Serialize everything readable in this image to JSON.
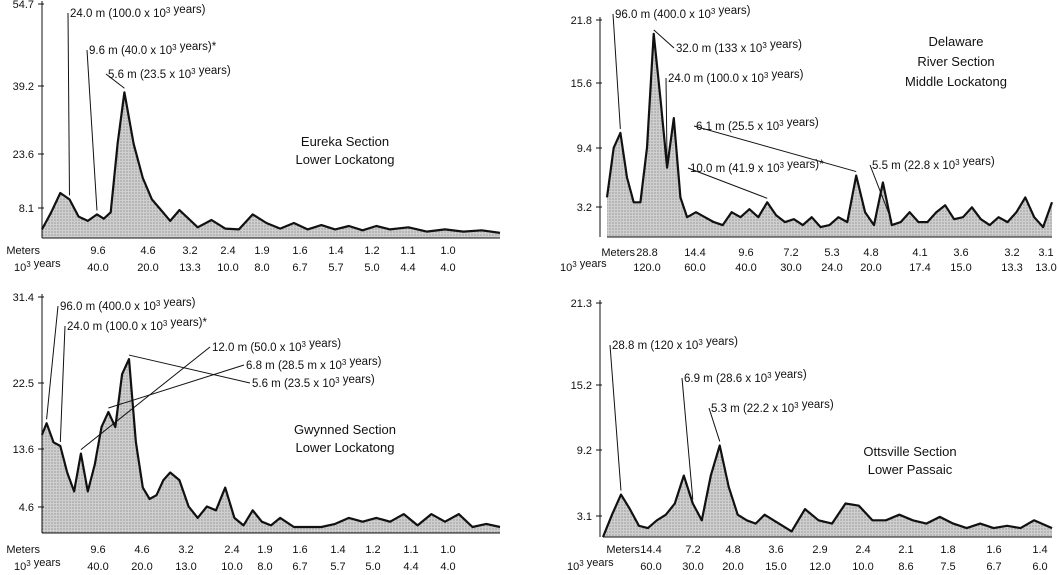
{
  "chart_data": [
    {
      "type": "area",
      "panel": "top-left",
      "title": [
        "Eureka Section",
        "Lower Lockatong"
      ],
      "y_ticks": [
        "54.7",
        "39.2",
        "23.6",
        "8.1"
      ],
      "ylim": [
        0,
        56
      ],
      "x_rows": [
        {
          "label": "Meters",
          "ticks": [
            "9.6",
            "4.6",
            "3.2",
            "2.4",
            "1.9",
            "1.6",
            "1.4",
            "1.2",
            "1.1",
            "1.0"
          ]
        },
        {
          "label": "10^3 years",
          "ticks": [
            "40.0",
            "20.0",
            "13.3",
            "10.0",
            "8.0",
            "6.7",
            "5.7",
            "5.0",
            "4.4",
            "4.0"
          ]
        }
      ],
      "x": [
        0,
        0.02,
        0.04,
        0.06,
        0.08,
        0.1,
        0.12,
        0.135,
        0.15,
        0.165,
        0.18,
        0.2,
        0.22,
        0.24,
        0.26,
        0.28,
        0.3,
        0.32,
        0.34,
        0.37,
        0.4,
        0.43,
        0.46,
        0.49,
        0.52,
        0.55,
        0.58,
        0.61,
        0.64,
        0.67,
        0.7,
        0.73,
        0.76,
        0.8,
        0.84,
        0.88,
        0.92,
        0.96,
        1.0
      ],
      "y": [
        2,
        6,
        10.5,
        9,
        5,
        4,
        5.5,
        4.5,
        6,
        22,
        34,
        22,
        14,
        9,
        6.5,
        4,
        6.5,
        4.5,
        2.5,
        4.2,
        2.2,
        2,
        5.5,
        3.5,
        2.2,
        3.5,
        2,
        3,
        2,
        2.8,
        1.8,
        2.8,
        2,
        2.5,
        1.5,
        2,
        1.5,
        1.8,
        1.2
      ],
      "annotations": [
        {
          "text": "24.0 m (100.0 x 10^3 years)",
          "peak": 0.06
        },
        {
          "text": "9.6 m (40.0 x 10^3 years)*",
          "peak": 0.12
        },
        {
          "text": "5.6 m (23.5 x 10^3 years)",
          "peak": 0.18
        }
      ]
    },
    {
      "type": "area",
      "panel": "top-right",
      "title": [
        "Delaware",
        "River Section",
        "Middle Lockatong"
      ],
      "y_ticks": [
        "21.8",
        "15.6",
        "9.4",
        "3.2"
      ],
      "ylim": [
        0,
        22.5
      ],
      "x_rows": [
        {
          "label": "Meters",
          "ticks": [
            "28.8",
            "14.4",
            "9.6",
            "7.2",
            "5.3",
            "4.8",
            "4.1",
            "3.6",
            "3.2",
            "3.1"
          ]
        },
        {
          "label": "10^3 years",
          "ticks": [
            "120.0",
            "60.0",
            "40.0",
            "30.0",
            "24.0",
            "20.0",
            "17.4",
            "15.0",
            "13.3",
            "13.0"
          ]
        }
      ],
      "x": [
        0,
        0.015,
        0.03,
        0.045,
        0.06,
        0.075,
        0.09,
        0.105,
        0.12,
        0.135,
        0.15,
        0.165,
        0.18,
        0.2,
        0.22,
        0.24,
        0.26,
        0.28,
        0.3,
        0.32,
        0.34,
        0.36,
        0.38,
        0.4,
        0.42,
        0.44,
        0.46,
        0.48,
        0.5,
        0.52,
        0.54,
        0.56,
        0.58,
        0.6,
        0.62,
        0.64,
        0.66,
        0.68,
        0.7,
        0.72,
        0.74,
        0.76,
        0.78,
        0.8,
        0.82,
        0.84,
        0.86,
        0.88,
        0.9,
        0.92,
        0.94,
        0.96,
        0.98,
        1.0
      ],
      "y": [
        4,
        9,
        10.5,
        6,
        3.5,
        3.5,
        9,
        20.5,
        14,
        7,
        12,
        4,
        2,
        2.5,
        2,
        1.5,
        1.2,
        2.5,
        2,
        2.8,
        2,
        3.5,
        2.2,
        1.5,
        1.8,
        1.2,
        2,
        1,
        1.2,
        2,
        1.5,
        6.2,
        2.5,
        1.2,
        5.5,
        1.2,
        1.5,
        2.5,
        1.5,
        1.5,
        2.5,
        3.2,
        1.8,
        2,
        3,
        1.8,
        1.2,
        2,
        1.5,
        2.5,
        4,
        2,
        1,
        3.5
      ],
      "annotations": [
        {
          "text": "96.0 m (400.0 x 10^3 years)",
          "peak": 0.03
        },
        {
          "text": "32.0 m (133 x 10^3 years)",
          "peak": 0.105
        },
        {
          "text": "24.0 m (100.0 x 10^3 years)",
          "peak": 0.135
        },
        {
          "text": "6.1 m (25.5 x 10^3 years)",
          "peak": 0.56
        },
        {
          "text": "10.0 m (41.9 x 10^3 years)*",
          "peak": 0.36
        },
        {
          "text": "5.5 m (22.8 x 10^3 years)",
          "peak": 0.64
        }
      ]
    },
    {
      "type": "area",
      "panel": "bottom-left",
      "title": [
        "Gwynned Section",
        "Lower Lockatong"
      ],
      "y_ticks": [
        "31.4",
        "22.5",
        "13.6",
        "4.6"
      ],
      "ylim": [
        0,
        32
      ],
      "x_rows": [
        {
          "label": "Meters",
          "ticks": [
            "9.6",
            "4.6",
            "3.2",
            "2.4",
            "1.9",
            "1.6",
            "1.4",
            "1.2",
            "1.1",
            "1.0"
          ]
        },
        {
          "label": "10^3 years",
          "ticks": [
            "40.0",
            "20.0",
            "13.0",
            "10.0",
            "8.0",
            "6.7",
            "5.7",
            "5.0",
            "4.4",
            "4.0"
          ]
        }
      ],
      "x": [
        0,
        0.01,
        0.025,
        0.04,
        0.055,
        0.07,
        0.085,
        0.1,
        0.115,
        0.13,
        0.145,
        0.16,
        0.175,
        0.19,
        0.205,
        0.22,
        0.235,
        0.25,
        0.265,
        0.28,
        0.3,
        0.32,
        0.34,
        0.36,
        0.38,
        0.4,
        0.42,
        0.44,
        0.46,
        0.48,
        0.5,
        0.52,
        0.55,
        0.58,
        0.61,
        0.64,
        0.67,
        0.7,
        0.73,
        0.76,
        0.79,
        0.82,
        0.85,
        0.88,
        0.91,
        0.94,
        0.97,
        1.0
      ],
      "y": [
        13,
        14.5,
        12,
        11.5,
        8,
        5.5,
        10.5,
        5.5,
        9,
        14,
        16,
        14,
        21,
        23,
        12,
        6,
        4.5,
        5,
        7,
        8,
        7,
        3.5,
        2,
        3.5,
        3,
        6,
        2,
        1,
        3,
        1.5,
        1,
        2,
        0.8,
        0.8,
        0.8,
        1.2,
        2,
        1.5,
        2,
        1.5,
        2.5,
        1,
        2.5,
        1.5,
        2.5,
        0.8,
        1.2,
        0.8
      ],
      "annotations": [
        {
          "text": "96.0 m (400.0 x 10^3 years)",
          "peak": 0.01
        },
        {
          "text": "24.0 m (100.0 x 10^3 years)*",
          "peak": 0.04
        },
        {
          "text": "12.0 m (50.0 x 10^3 years)",
          "peak": 0.085
        },
        {
          "text": "6.8 m (28.5 m x 10^3 years)",
          "peak": 0.145
        },
        {
          "text": "5.6 m (23.5 x 10^3 years)",
          "peak": 0.19
        }
      ]
    },
    {
      "type": "area",
      "panel": "bottom-right",
      "title": [
        "Ottsville Section",
        "Lower Passaic"
      ],
      "y_ticks": [
        "21.3",
        "15.2",
        "9.2",
        "3.1"
      ],
      "ylim": [
        0,
        21.5
      ],
      "x_rows": [
        {
          "label": "Meters",
          "ticks": [
            "14.4",
            "7.2",
            "4.8",
            "3.6",
            "2.9",
            "2.4",
            "2.1",
            "1.8",
            "1.6",
            "1.4"
          ]
        },
        {
          "label": "10^3 years",
          "ticks": [
            "60.0",
            "30.0",
            "20.0",
            "15.0",
            "12.0",
            "10.0",
            "8.6",
            "7.5",
            "6.7",
            "6.0"
          ]
        }
      ],
      "x": [
        0,
        0.02,
        0.04,
        0.06,
        0.08,
        0.1,
        0.12,
        0.14,
        0.16,
        0.18,
        0.2,
        0.22,
        0.24,
        0.26,
        0.28,
        0.3,
        0.32,
        0.34,
        0.36,
        0.38,
        0.4,
        0.42,
        0.45,
        0.48,
        0.51,
        0.54,
        0.57,
        0.6,
        0.63,
        0.66,
        0.69,
        0.72,
        0.75,
        0.78,
        0.81,
        0.84,
        0.87,
        0.9,
        0.93,
        0.96,
        1.0
      ],
      "y": [
        0,
        2,
        3.8,
        2.5,
        1,
        0.8,
        1.5,
        2,
        3,
        5.5,
        3,
        1.5,
        5.5,
        8.2,
        4.5,
        2,
        1.5,
        1.2,
        2,
        1.5,
        1,
        0.5,
        2.5,
        1.5,
        1.2,
        3,
        2.8,
        1.5,
        1.5,
        2,
        1.5,
        1.2,
        1.8,
        1.2,
        0.8,
        1.2,
        0.8,
        1,
        0.8,
        1.5,
        0.8
      ],
      "annotations": [
        {
          "text": "28.8 m (120 x 10^3 years)",
          "peak": 0.04
        },
        {
          "text": "6.9 m (28.6 x 10^3 years)",
          "peak": 0.2
        },
        {
          "text": "5.3 m (22.2 x 10^3 years)",
          "peak": 0.26
        }
      ]
    }
  ]
}
